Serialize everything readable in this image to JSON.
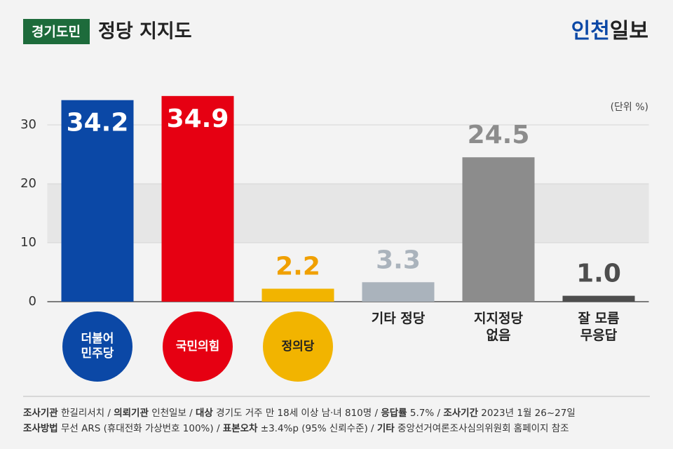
{
  "header": {
    "tag": "경기도민",
    "title": "정당 지지도",
    "logo_main": "인천",
    "logo_sub": "일보"
  },
  "chart_data": {
    "type": "bar",
    "unit": "(단위 %)",
    "categories": [
      "더불어\n민주당",
      "국민의힘",
      "정의당",
      "기타 정당",
      "지지정당\n없음",
      "잘 모름\n무응답"
    ],
    "values": [
      34.2,
      34.9,
      2.2,
      3.3,
      24.5,
      1.0
    ],
    "value_labels": [
      "34.2",
      "34.9",
      "2.2",
      "3.3",
      "24.5",
      "1.0"
    ],
    "colors": [
      "#0b48a6",
      "#e60012",
      "#f2b400",
      "#aab3bc",
      "#8c8c8c",
      "#4d4d4d"
    ],
    "label_colors": [
      "#ffffff",
      "#ffffff",
      "#f0a000",
      "#aab3bc",
      "#8c8c8c",
      "#4d4d4d"
    ],
    "label_inside": [
      true,
      true,
      false,
      false,
      false,
      false
    ],
    "logos": [
      true,
      true,
      true,
      false,
      false,
      false
    ],
    "ylim": [
      0,
      37
    ],
    "yticks": [
      0,
      10,
      20,
      30
    ],
    "grid": true
  },
  "footer": {
    "lines": [
      [
        {
          "label": "조사기관",
          "text": " 한길리서치 / "
        },
        {
          "label": "의뢰기관",
          "text": " 인천일보 / "
        },
        {
          "label": "대상",
          "text": " 경기도 거주 만 18세 이상 남·녀 810명 / "
        },
        {
          "label": "응답률",
          "text": " 5.7% / "
        },
        {
          "label": "조사기간",
          "text": " 2023년 1월 26~27일"
        }
      ],
      [
        {
          "label": "조사방법",
          "text": " 무선 ARS (휴대전화 가상번호 100%) / "
        },
        {
          "label": "표본오차",
          "text": " ±3.4%p (95% 신뢰수준) / "
        },
        {
          "label": "기타",
          "text": " 중앙선거여론조사심의위원회 홈페이지 참조"
        }
      ]
    ]
  }
}
